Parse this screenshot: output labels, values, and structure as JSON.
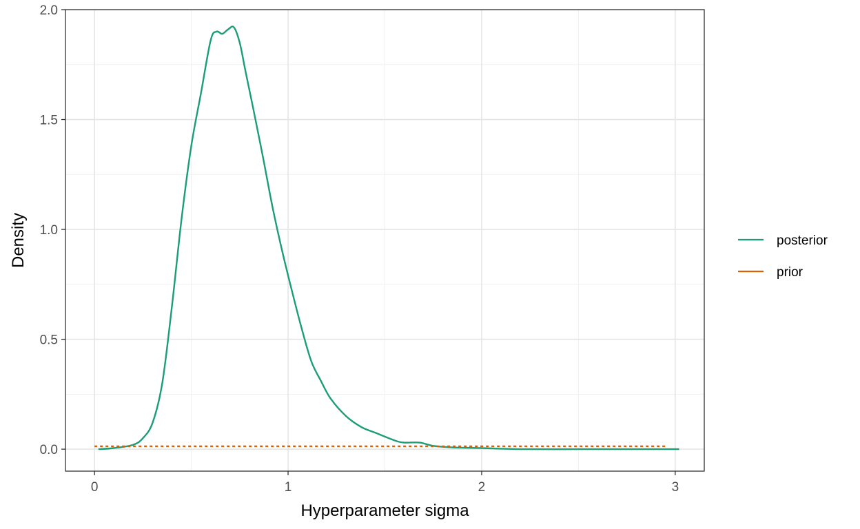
{
  "chart_data": {
    "type": "line",
    "title": "",
    "xlabel": "Hyperparameter sigma",
    "ylabel": "Density",
    "xlim": [
      -0.15,
      3.15
    ],
    "ylim": [
      -0.1,
      2.0
    ],
    "x_ticks": [
      0,
      1,
      2,
      3
    ],
    "x_tick_labels": [
      "0",
      "1",
      "2",
      "3"
    ],
    "y_ticks": [
      0.0,
      0.5,
      1.0,
      1.5,
      2.0
    ],
    "y_tick_labels": [
      "0.0",
      "0.5",
      "1.0",
      "1.5",
      "2.0"
    ],
    "grid": true,
    "legend_position": "right",
    "series": [
      {
        "name": "posterior",
        "color": "#1b9e77",
        "style": "solid",
        "x": [
          0.02,
          0.1,
          0.2,
          0.25,
          0.3,
          0.35,
          0.4,
          0.45,
          0.5,
          0.55,
          0.6,
          0.63,
          0.66,
          0.69,
          0.72,
          0.75,
          0.78,
          0.82,
          0.87,
          0.92,
          0.97,
          1.02,
          1.07,
          1.12,
          1.17,
          1.22,
          1.3,
          1.38,
          1.45,
          1.55,
          1.6,
          1.68,
          1.75,
          1.85,
          2.0,
          2.2,
          2.5,
          2.8,
          3.02
        ],
        "y": [
          0.0,
          0.005,
          0.02,
          0.05,
          0.12,
          0.3,
          0.65,
          1.05,
          1.38,
          1.62,
          1.86,
          1.9,
          1.89,
          1.91,
          1.92,
          1.85,
          1.72,
          1.55,
          1.33,
          1.1,
          0.9,
          0.72,
          0.55,
          0.4,
          0.31,
          0.23,
          0.15,
          0.1,
          0.075,
          0.04,
          0.03,
          0.03,
          0.015,
          0.008,
          0.005,
          0.0,
          0.0,
          0.0,
          0.0
        ]
      },
      {
        "name": "prior",
        "color": "#d95f02",
        "style": "dotted",
        "x": [
          0.0,
          2.95
        ],
        "y": [
          0.013,
          0.013
        ]
      }
    ]
  }
}
